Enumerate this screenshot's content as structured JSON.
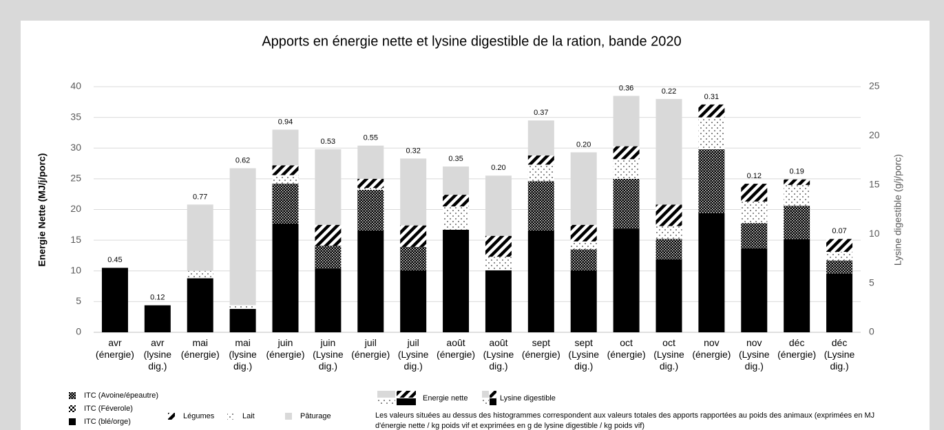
{
  "chart_data": {
    "type": "stacked_bar",
    "title": "Apports en énergie nette et lysine digestible de la ration, bande 2020",
    "y_label": "Energie Nette (MJ/j/porc)",
    "y2_label": "Lysine digestible (g/j/porc)",
    "categories": [
      [
        "avr",
        "(énergie)"
      ],
      [
        "avr",
        "(lysine",
        "dig.)"
      ],
      [
        "mai",
        "(énergie)"
      ],
      [
        "mai",
        "(lysine",
        "dig.)"
      ],
      [
        "juin",
        "(énergie)"
      ],
      [
        "juin",
        "(Lysine",
        "dig.)"
      ],
      [
        "juil",
        "(énergie)"
      ],
      [
        "juil",
        "(Lysine",
        "dig.)"
      ],
      [
        "août",
        "(énergie)"
      ],
      [
        "août",
        "(Lysine",
        "dig.)"
      ],
      [
        "sept",
        "(énergie)"
      ],
      [
        "sept",
        "(Lysine",
        "dig.)"
      ],
      [
        "oct",
        "(énergie)"
      ],
      [
        "oct",
        "(Lysine",
        "dig.)"
      ],
      [
        "nov",
        "(énergie)"
      ],
      [
        "nov",
        "(Lysine",
        "dig.)"
      ],
      [
        "déc",
        "(énergie)"
      ],
      [
        "déc",
        "(Lysine",
        "dig.)"
      ]
    ],
    "bar_axis": [
      "y",
      "y2",
      "y",
      "y2",
      "y",
      "y2",
      "y",
      "y2",
      "y",
      "y2",
      "y",
      "y2",
      "y",
      "y2",
      "y",
      "y2",
      "y",
      "y2"
    ],
    "series": [
      {
        "name": "ITC (blé/orge)",
        "color": "#000000",
        "pattern": "solid",
        "values": [
          10.5,
          2.75,
          8.8,
          2.38,
          17.7,
          6.5,
          16.6,
          6.31,
          16.7,
          6.31,
          16.6,
          6.31,
          16.9,
          7.44,
          19.4,
          8.56,
          15.2,
          6.0
        ]
      },
      {
        "name": "ITC (Féverole)",
        "color": "#000000",
        "pattern": "checker",
        "values": [
          null,
          null,
          null,
          null,
          null,
          null,
          null,
          null,
          null,
          null,
          null,
          null,
          null,
          null,
          null,
          null,
          null,
          null
        ]
      },
      {
        "name": "ITC (Avoine/épeautre)",
        "color": "#000000",
        "pattern": "dense",
        "values": [
          null,
          null,
          null,
          null,
          6.5,
          2.31,
          6.6,
          2.38,
          null,
          null,
          8.0,
          2.13,
          8.1,
          2.06,
          10.4,
          2.56,
          5.4,
          1.31
        ]
      },
      {
        "name": "Lait",
        "color": "#000000",
        "pattern": "dots",
        "values": [
          null,
          null,
          1.2,
          0.38,
          1.4,
          null,
          0.3,
          null,
          3.8,
          1.38,
          2.7,
          0.81,
          3.2,
          1.31,
          5.2,
          2.19,
          3.4,
          0.88
        ]
      },
      {
        "name": "Légumes",
        "color": "#000000",
        "pattern": "stripes",
        "values": [
          null,
          null,
          null,
          null,
          1.6,
          2.13,
          1.5,
          2.19,
          1.9,
          2.13,
          1.5,
          1.69,
          2.1,
          2.19,
          2.1,
          1.81,
          0.9,
          1.31
        ]
      },
      {
        "name": "Pâturage",
        "color": "#d9d9d9",
        "pattern": "solid",
        "values": [
          null,
          null,
          10.8,
          13.94,
          5.8,
          7.69,
          5.4,
          6.81,
          4.6,
          6.13,
          5.7,
          7.38,
          8.2,
          10.75,
          null,
          null,
          null,
          null
        ]
      }
    ],
    "totals": [
      0.45,
      0.12,
      0.77,
      0.62,
      0.94,
      0.53,
      0.55,
      0.32,
      0.35,
      0.2,
      0.37,
      0.2,
      0.36,
      0.22,
      0.31,
      0.12,
      0.19,
      0.07
    ],
    "value_labels": [
      "0.45",
      "0.12",
      "0.77",
      "0.62",
      "0.94",
      "0.53",
      "0.55",
      "0.32",
      "0.35",
      "0.20",
      "0.37",
      "0.20",
      "0.36",
      "0.22",
      "0.31",
      "0.12",
      "0.19",
      "0.07"
    ],
    "ylim": [
      0,
      40
    ],
    "yticks": [
      0,
      5,
      10,
      15,
      20,
      25,
      30,
      35,
      40
    ],
    "y2lim": [
      0,
      25
    ],
    "y2ticks": [
      0,
      5,
      10,
      15,
      20,
      25
    ],
    "grid": true,
    "legend_keys": [
      "Energie nette",
      "Lysine digestible"
    ],
    "note": [
      "Les valeurs situées au dessus des histogrammes correspondent aux valeurs totales des apports rapportées au poids des animaux (exprimées en MJ",
      "d'énergie nette / kg poids vif et exprimées en g de lysine digestible / kg poids vif)"
    ]
  }
}
